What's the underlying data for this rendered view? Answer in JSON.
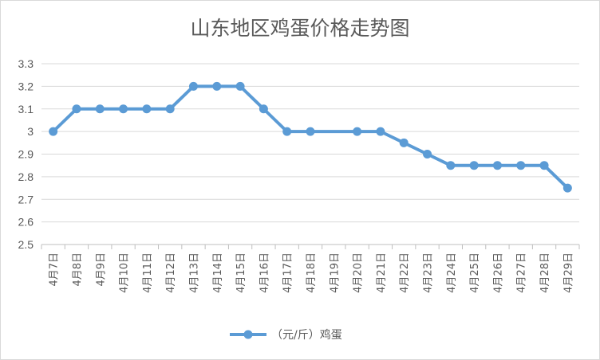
{
  "chart_data": {
    "type": "line",
    "title": "山东地区鸡蛋价格走势图",
    "xlabel": "",
    "ylabel": "",
    "categories": [
      "4月7日",
      "4月8日",
      "4月9日",
      "4月10日",
      "4月11日",
      "4月12日",
      "4月13日",
      "4月14日",
      "4月15日",
      "4月16日",
      "4月17日",
      "4月18日",
      "4月19日",
      "4月20日",
      "4月21日",
      "4月22日",
      "4月23日",
      "4月24日",
      "4月25日",
      "4月26日",
      "4月27日",
      "4月28日",
      "4月29日"
    ],
    "series": [
      {
        "name": "（元/斤）鸡蛋",
        "color": "#5b9bd5",
        "values": [
          3.0,
          3.1,
          3.1,
          3.1,
          3.1,
          3.1,
          3.2,
          3.2,
          3.2,
          3.1,
          3.0,
          3.0,
          null,
          3.0,
          3.0,
          2.95,
          2.9,
          2.85,
          2.85,
          2.85,
          2.85,
          2.85,
          2.75
        ]
      }
    ],
    "ylim": [
      2.5,
      3.3
    ],
    "yticks": [
      "2.5",
      "2.6",
      "2.7",
      "2.8",
      "2.9",
      "3",
      "3.1",
      "3.2",
      "3.3"
    ],
    "grid": true,
    "legend": "bottom"
  }
}
